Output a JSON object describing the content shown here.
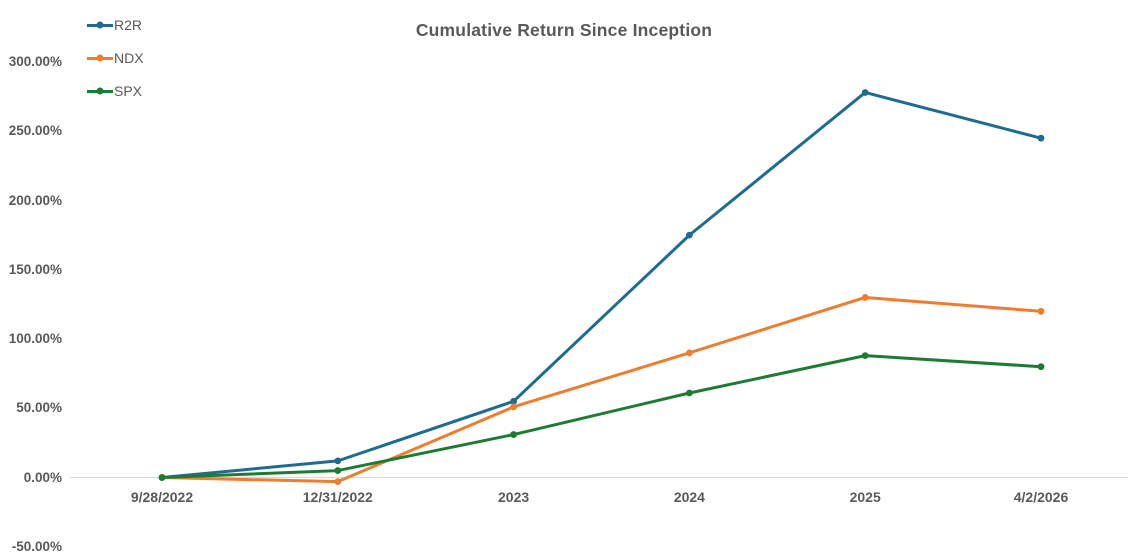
{
  "chart_data": {
    "type": "line",
    "title": "Cumulative Return Since Inception",
    "categories": [
      "9/28/2022",
      "12/31/2022",
      "2023",
      "2024",
      "2025",
      "4/2/2026"
    ],
    "series": [
      {
        "name": "R2R",
        "color": "#1F6C8E",
        "values": [
          0,
          12,
          55,
          175,
          278,
          245
        ]
      },
      {
        "name": "NDX",
        "color": "#ED7D31",
        "values": [
          0,
          -3,
          51,
          90,
          130,
          120
        ]
      },
      {
        "name": "SPX",
        "color": "#1E7B34",
        "values": [
          0,
          5,
          31,
          61,
          88,
          80
        ]
      }
    ],
    "units": "percent",
    "y_ticks": [
      "300.00%",
      "250.00%",
      "200.00%",
      "150.00%",
      "100.00%",
      "50.00%",
      "0.00%",
      "-50.00%"
    ],
    "ylim": [
      -50,
      300
    ],
    "y_tick_step": 50,
    "grid": false,
    "legend_position": "top-left",
    "axis_line_color": "#D9D9D9",
    "text_color": "#595959",
    "background": "#FFFFFF"
  }
}
